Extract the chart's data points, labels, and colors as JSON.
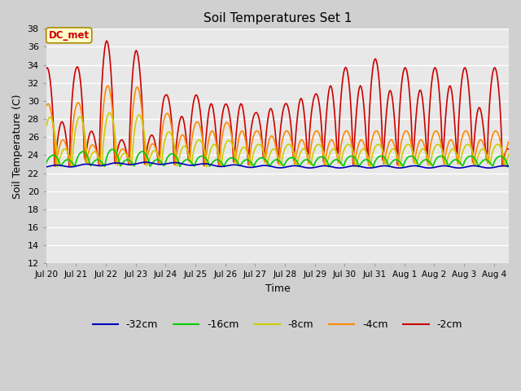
{
  "title": "Soil Temperatures Set 1",
  "xlabel": "Time",
  "ylabel": "Soil Temperature (C)",
  "ylim": [
    12,
    38
  ],
  "yticks": [
    12,
    14,
    16,
    18,
    20,
    22,
    24,
    26,
    28,
    30,
    32,
    34,
    36,
    38
  ],
  "fig_bg_color": "#d0d0d0",
  "plot_bg_color": "#e8e8e8",
  "annotation_text": "DC_met",
  "annotation_bg": "#ffffcc",
  "annotation_border": "#aa8800",
  "annotation_text_color": "#cc0000",
  "colors": {
    "-32cm": "#0000bb",
    "-16cm": "#00cc00",
    "-8cm": "#cccc00",
    "-4cm": "#ff8800",
    "-2cm": "#cc0000"
  },
  "x_tick_labels": [
    "Jul 20",
    "Jul 21",
    "Jul 22",
    "Jul 23",
    "Jul 24",
    "Jul 25",
    "Jul 26",
    "Jul 27",
    "Jul 28",
    "Jul 29",
    "Jul 30",
    "Jul 31",
    "Aug 1",
    "Aug 2",
    "Aug 3",
    "Aug 4"
  ],
  "num_days": 15.5,
  "num_points": 500
}
